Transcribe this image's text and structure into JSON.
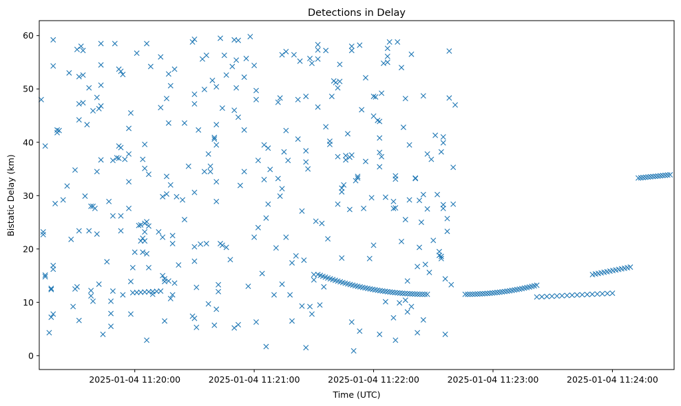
{
  "chart_data": {
    "type": "scatter",
    "title": "Detections in Delay",
    "xlabel": "Time (UTC)",
    "ylabel": "Bistatic Delay (km)",
    "marker": "x",
    "color": "#1f77b4",
    "x_unit": "seconds after 2025-01-04 11:19:00 UTC",
    "xlim": [
      12,
      331
    ],
    "ylim": [
      -2.6,
      62.8
    ],
    "xticks": [
      60,
      120,
      180,
      240,
      300
    ],
    "xtick_labels": [
      "2025-01-04 11:20:00",
      "2025-01-04 11:21:00",
      "2025-01-04 11:22:00",
      "2025-01-04 11:23:00",
      "2025-01-04 11:24:00"
    ],
    "yticks": [
      0,
      10,
      20,
      30,
      40,
      50,
      60
    ],
    "ytick_labels": [
      "0",
      "10",
      "20",
      "30",
      "40",
      "50",
      "60"
    ],
    "tracks": [
      {
        "name": "arc track (cluster of detections)",
        "x_start": 152,
        "x_end": 207,
        "x_apex": 207,
        "y_start": 15.2,
        "y_apex": 11.5,
        "count": 45
      },
      {
        "name": "arc track (cluster of detections)",
        "x_start": 226,
        "x_end": 262,
        "x_apex": 226,
        "y_start": 11.5,
        "y_apex": 11.5,
        "y_end": 13.2,
        "count": 30
      },
      {
        "name": "rising track",
        "x_start": 290,
        "x_end": 309,
        "y_start": 15.2,
        "y_end": 16.6,
        "count": 14
      },
      {
        "name": "flat track",
        "x_start": 313,
        "x_end": 329,
        "y_start": 33.3,
        "y_end": 33.9,
        "count": 14
      },
      {
        "name": "flat track",
        "x_start": 262,
        "x_end": 300,
        "y_start": 11.0,
        "y_end": 11.7,
        "count": 16
      },
      {
        "name": "flat track",
        "x_start": 59,
        "x_end": 73,
        "y_start": 11.8,
        "y_end": 12.1,
        "count": 8
      }
    ],
    "points": [
      [
        13,
        48
      ],
      [
        14,
        22.7
      ],
      [
        14,
        23.2
      ],
      [
        15,
        39.3
      ],
      [
        15,
        14.8
      ],
      [
        15,
        15.1
      ],
      [
        17,
        4.3
      ],
      [
        18,
        7.2
      ],
      [
        18,
        12.4
      ],
      [
        18,
        12.6
      ],
      [
        19,
        7.8
      ],
      [
        19,
        16.2
      ],
      [
        19,
        16.9
      ],
      [
        19,
        54.3
      ],
      [
        19,
        59.2
      ],
      [
        20,
        28.5
      ],
      [
        21,
        41.8
      ],
      [
        21,
        42.3
      ],
      [
        22,
        42.2
      ],
      [
        24,
        29.2
      ],
      [
        26,
        31.8
      ],
      [
        27,
        53
      ],
      [
        28,
        21.8
      ],
      [
        29,
        9.2
      ],
      [
        30,
        12.5
      ],
      [
        30,
        34.8
      ],
      [
        31,
        12.9
      ],
      [
        31,
        57.4
      ],
      [
        32,
        6.6
      ],
      [
        32,
        23.4
      ],
      [
        32,
        44.2
      ],
      [
        32,
        47.2
      ],
      [
        32,
        52.3
      ],
      [
        33,
        58
      ],
      [
        34,
        47.4
      ],
      [
        34,
        52.6
      ],
      [
        34,
        57.2
      ],
      [
        35,
        29.9
      ],
      [
        36,
        43.3
      ],
      [
        37,
        50.2
      ],
      [
        37,
        23.4
      ],
      [
        38,
        11.2
      ],
      [
        38,
        12.2
      ],
      [
        38,
        28
      ],
      [
        39,
        45.9
      ],
      [
        39,
        28
      ],
      [
        39,
        10.2
      ],
      [
        40,
        27.6
      ],
      [
        41,
        48.4
      ],
      [
        41,
        22.8
      ],
      [
        41,
        34.5
      ],
      [
        42,
        13.4
      ],
      [
        42,
        46.3
      ],
      [
        43,
        46.8
      ],
      [
        43,
        50.7
      ],
      [
        43,
        36.7
      ],
      [
        43,
        54.5
      ],
      [
        43,
        58.5
      ],
      [
        44,
        4
      ],
      [
        46,
        17.6
      ],
      [
        47,
        28.9
      ],
      [
        48,
        5.5
      ],
      [
        48,
        7.9
      ],
      [
        48,
        10.2
      ],
      [
        49,
        12.1
      ],
      [
        49,
        26.2
      ],
      [
        49,
        36.6
      ],
      [
        50,
        58.5
      ],
      [
        51,
        37.1
      ],
      [
        52,
        53.7
      ],
      [
        52,
        39.3
      ],
      [
        52,
        37
      ],
      [
        53,
        53.3
      ],
      [
        53,
        26.2
      ],
      [
        53,
        23.4
      ],
      [
        53,
        39
      ],
      [
        54,
        11.4
      ],
      [
        54,
        52.7
      ],
      [
        55,
        36.8
      ],
      [
        57,
        27.6
      ],
      [
        57,
        32.6
      ],
      [
        57,
        37.8
      ],
      [
        57,
        42.6
      ],
      [
        58,
        45.5
      ],
      [
        58,
        13.9
      ],
      [
        58,
        7.8
      ],
      [
        59,
        16.5
      ],
      [
        60,
        19.4
      ],
      [
        61,
        56.7
      ],
      [
        62,
        24.4
      ],
      [
        63,
        24.5
      ],
      [
        63,
        21.5
      ],
      [
        64,
        36.8
      ],
      [
        64,
        22
      ],
      [
        64,
        19.4
      ],
      [
        65,
        23.2
      ],
      [
        65,
        35.1
      ],
      [
        65,
        39.6
      ],
      [
        65,
        21.5
      ],
      [
        65,
        24.8
      ],
      [
        66,
        2.9
      ],
      [
        66,
        58.5
      ],
      [
        66,
        19.1
      ],
      [
        66,
        25.1
      ],
      [
        67,
        24.3
      ],
      [
        67,
        34
      ],
      [
        67,
        16.5
      ],
      [
        68,
        54.2
      ],
      [
        69,
        11.5
      ],
      [
        72,
        23.2
      ],
      [
        73,
        46.5
      ],
      [
        73,
        56
      ],
      [
        74,
        15
      ],
      [
        74,
        29.8
      ],
      [
        74,
        22.2
      ],
      [
        75,
        13.9
      ],
      [
        75,
        6.5
      ],
      [
        75,
        14.4
      ],
      [
        76,
        33.6
      ],
      [
        76,
        30.3
      ],
      [
        76,
        48.2
      ],
      [
        77,
        52.8
      ],
      [
        77,
        14
      ],
      [
        77,
        43.6
      ],
      [
        78,
        32
      ],
      [
        78,
        50.6
      ],
      [
        78,
        10.7
      ],
      [
        79,
        21
      ],
      [
        79,
        22.5
      ],
      [
        79,
        11.4
      ],
      [
        80,
        53.7
      ],
      [
        80,
        13.6
      ],
      [
        81,
        29.8
      ],
      [
        82,
        17
      ],
      [
        84,
        29.2
      ],
      [
        85,
        43.6
      ],
      [
        85,
        25.5
      ],
      [
        87,
        35.5
      ],
      [
        89,
        58.8
      ],
      [
        89,
        7.4
      ],
      [
        90,
        7
      ],
      [
        90,
        59.3
      ],
      [
        90,
        49
      ],
      [
        90,
        47.2
      ],
      [
        90,
        30.6
      ],
      [
        90,
        20.4
      ],
      [
        90,
        17.7
      ],
      [
        91,
        5.3
      ],
      [
        91,
        12.8
      ],
      [
        92,
        42.3
      ],
      [
        93,
        20.9
      ],
      [
        94,
        55.6
      ],
      [
        95,
        34.5
      ],
      [
        95,
        49.9
      ],
      [
        96,
        56.3
      ],
      [
        96,
        21
      ],
      [
        97,
        37.8
      ],
      [
        97,
        9.7
      ],
      [
        98,
        35.5
      ],
      [
        98,
        34.5
      ],
      [
        99,
        51.6
      ],
      [
        100,
        40.6
      ],
      [
        100,
        40.9
      ],
      [
        100,
        5.7
      ],
      [
        101,
        50.4
      ],
      [
        101,
        43.3
      ],
      [
        101,
        28.9
      ],
      [
        101,
        32.6
      ],
      [
        101,
        39.5
      ],
      [
        101,
        8.7
      ],
      [
        102,
        12
      ],
      [
        102,
        13.3
      ],
      [
        103,
        59.5
      ],
      [
        103,
        21
      ],
      [
        104,
        46.4
      ],
      [
        104,
        20.7
      ],
      [
        105,
        56.3
      ],
      [
        106,
        52.6
      ],
      [
        106,
        20.3
      ],
      [
        108,
        18
      ],
      [
        109,
        54.2
      ],
      [
        110,
        59.2
      ],
      [
        110,
        46
      ],
      [
        110,
        5.2
      ],
      [
        111,
        55.4
      ],
      [
        111,
        50.2
      ],
      [
        112,
        44.7
      ],
      [
        112,
        59.1
      ],
      [
        112,
        5.8
      ],
      [
        113,
        31.9
      ],
      [
        115,
        42.3
      ],
      [
        115,
        34.5
      ],
      [
        115,
        52.2
      ],
      [
        116,
        55.7
      ],
      [
        117,
        13
      ],
      [
        118,
        59.8
      ],
      [
        120,
        54.4
      ],
      [
        120,
        22.2
      ],
      [
        121,
        48
      ],
      [
        121,
        49.7
      ],
      [
        121,
        6.3
      ],
      [
        122,
        24
      ],
      [
        122,
        36.6
      ],
      [
        124,
        15.4
      ],
      [
        125,
        33
      ],
      [
        125,
        39.5
      ],
      [
        126,
        25.8
      ],
      [
        126,
        1.7
      ],
      [
        127,
        38.9
      ],
      [
        127,
        28.4
      ],
      [
        128,
        34.9
      ],
      [
        130,
        11.4
      ],
      [
        131,
        20.2
      ],
      [
        132,
        47.5
      ],
      [
        132,
        33.2
      ],
      [
        133,
        29.9
      ],
      [
        133,
        48.3
      ],
      [
        134,
        56.4
      ],
      [
        134,
        31.3
      ],
      [
        134,
        13.4
      ],
      [
        135,
        38.2
      ],
      [
        136,
        42.2
      ],
      [
        136,
        22.2
      ],
      [
        136,
        57
      ],
      [
        137,
        36.6
      ],
      [
        138,
        11.4
      ],
      [
        139,
        17.4
      ],
      [
        139,
        6.5
      ],
      [
        140,
        56.4
      ],
      [
        141,
        18.7
      ],
      [
        142,
        48
      ],
      [
        142,
        40.6
      ],
      [
        143,
        55.2
      ],
      [
        144,
        9.3
      ],
      [
        144,
        27.1
      ],
      [
        145,
        17.9
      ],
      [
        146,
        48.6
      ],
      [
        146,
        38.4
      ],
      [
        146,
        36.3
      ],
      [
        146,
        1.5
      ],
      [
        147,
        35
      ],
      [
        148,
        9.2
      ],
      [
        148,
        55.7
      ],
      [
        149,
        7.8
      ],
      [
        149,
        54.8
      ],
      [
        150,
        14.2
      ],
      [
        150,
        15.2
      ],
      [
        151,
        25.2
      ],
      [
        152,
        55.6
      ],
      [
        152,
        57.3
      ],
      [
        152,
        58.3
      ],
      [
        152,
        46.6
      ],
      [
        153,
        9.5
      ],
      [
        154,
        24.8
      ],
      [
        155,
        12.9
      ],
      [
        156,
        57.2
      ],
      [
        156,
        42.9
      ],
      [
        157,
        21.9
      ],
      [
        158,
        40.2
      ],
      [
        158,
        39.6
      ],
      [
        159,
        48.6
      ],
      [
        160,
        51.5
      ],
      [
        161,
        51.2
      ],
      [
        162,
        28.4
      ],
      [
        162,
        50.2
      ],
      [
        162,
        37.3
      ],
      [
        163,
        54.6
      ],
      [
        163,
        51.4
      ],
      [
        164,
        31.4
      ],
      [
        164,
        18.3
      ],
      [
        164,
        30.7
      ],
      [
        165,
        32
      ],
      [
        166,
        36.7
      ],
      [
        166,
        37.5
      ],
      [
        167,
        41.6
      ],
      [
        168,
        27.4
      ],
      [
        168,
        37.2
      ],
      [
        169,
        37.6
      ],
      [
        169,
        57.2
      ],
      [
        169,
        58
      ],
      [
        169,
        6.3
      ],
      [
        170,
        0.9
      ],
      [
        171,
        32.8
      ],
      [
        172,
        33.3
      ],
      [
        172,
        33.6
      ],
      [
        173,
        58.2
      ],
      [
        173,
        4.6
      ],
      [
        174,
        46.1
      ],
      [
        175,
        27.6
      ],
      [
        176,
        36.4
      ],
      [
        176,
        52.1
      ],
      [
        178,
        18.2
      ],
      [
        179,
        29.6
      ],
      [
        180,
        20.7
      ],
      [
        180,
        44.9
      ],
      [
        180,
        48.6
      ],
      [
        181,
        48.5
      ],
      [
        182,
        44.1
      ],
      [
        183,
        43.9
      ],
      [
        183,
        40.8
      ],
      [
        183,
        38.1
      ],
      [
        183,
        35.4
      ],
      [
        183,
        4
      ],
      [
        184,
        37.3
      ],
      [
        184,
        49.2
      ],
      [
        185,
        54.8
      ],
      [
        186,
        29.7
      ],
      [
        186,
        10.1
      ],
      [
        187,
        55
      ],
      [
        187,
        57.6
      ],
      [
        187,
        56.1
      ],
      [
        188,
        58.8
      ],
      [
        190,
        28.9
      ],
      [
        190,
        7.1
      ],
      [
        190,
        27.6
      ],
      [
        191,
        2.9
      ],
      [
        191,
        27.7
      ],
      [
        191,
        33.1
      ],
      [
        191,
        33.7
      ],
      [
        192,
        58.8
      ],
      [
        193,
        9.9
      ],
      [
        194,
        21.4
      ],
      [
        194,
        54
      ],
      [
        195,
        42.8
      ],
      [
        196,
        10.4
      ],
      [
        196,
        48.2
      ],
      [
        196,
        25.5
      ],
      [
        197,
        14
      ],
      [
        197,
        8.2
      ],
      [
        198,
        39.5
      ],
      [
        198,
        29.2
      ],
      [
        199,
        56.5
      ],
      [
        199,
        9.2
      ],
      [
        201,
        33.2
      ],
      [
        201,
        33.3
      ],
      [
        202,
        16.7
      ],
      [
        202,
        4.3
      ],
      [
        203,
        20.3
      ],
      [
        203,
        29.1
      ],
      [
        204,
        25
      ],
      [
        205,
        30.2
      ],
      [
        205,
        6.7
      ],
      [
        205,
        48.7
      ],
      [
        206,
        17.1
      ],
      [
        207,
        37.8
      ],
      [
        207,
        27.5
      ],
      [
        208,
        15.6
      ],
      [
        209,
        36.8
      ],
      [
        210,
        21.6
      ],
      [
        211,
        41.3
      ],
      [
        212,
        30.2
      ],
      [
        213,
        19.5
      ],
      [
        213,
        18.8
      ],
      [
        214,
        38.2
      ],
      [
        214,
        18.2
      ],
      [
        214,
        18.6
      ],
      [
        215,
        39.9
      ],
      [
        215,
        41
      ],
      [
        215,
        27.6
      ],
      [
        215,
        28.3
      ],
      [
        216,
        14.4
      ],
      [
        216,
        4
      ],
      [
        217,
        23.3
      ],
      [
        217,
        25.7
      ],
      [
        218,
        48.3
      ],
      [
        218,
        57.1
      ],
      [
        219,
        13.3
      ],
      [
        220,
        28.4
      ],
      [
        220,
        35.3
      ],
      [
        221,
        47
      ]
    ]
  }
}
